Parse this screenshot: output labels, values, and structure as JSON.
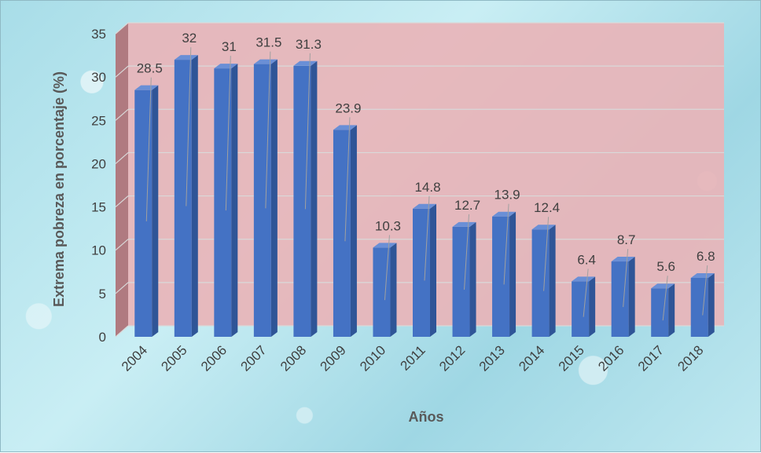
{
  "chart_data": {
    "type": "bar",
    "title": "",
    "xlabel": "Años",
    "ylabel": "Extrema pobreza en porcentaje (%)",
    "ylim": [
      0,
      35
    ],
    "yticks": [
      0,
      5,
      10,
      15,
      20,
      25,
      30,
      35
    ],
    "categories": [
      "2004",
      "2005",
      "2006",
      "2007",
      "2008",
      "2009",
      "2010",
      "2011",
      "2012",
      "2013",
      "2014",
      "2015",
      "2016",
      "2017",
      "2018"
    ],
    "values": [
      28.5,
      32,
      31,
      31.5,
      31.3,
      23.9,
      10.3,
      14.8,
      12.7,
      13.9,
      12.4,
      6.4,
      8.7,
      5.6,
      6.8
    ],
    "data_labels": [
      "28.5",
      "32",
      "31",
      "31.5",
      "31.3",
      "23.9",
      "10.3",
      "14.8",
      "12.7",
      "13.9",
      "12.4",
      "6.4",
      "8.7",
      "5.6",
      "6.8"
    ],
    "grid": true,
    "colors": {
      "bar_front": "#4472c4",
      "bar_side": "#2f5597",
      "bar_top": "#6a8fd6",
      "plot_back": "#e8b4b8",
      "plot_side": "#b07a80",
      "gridline": "#d9d9d9",
      "text": "#404040",
      "axis_title": "#595959"
    }
  }
}
